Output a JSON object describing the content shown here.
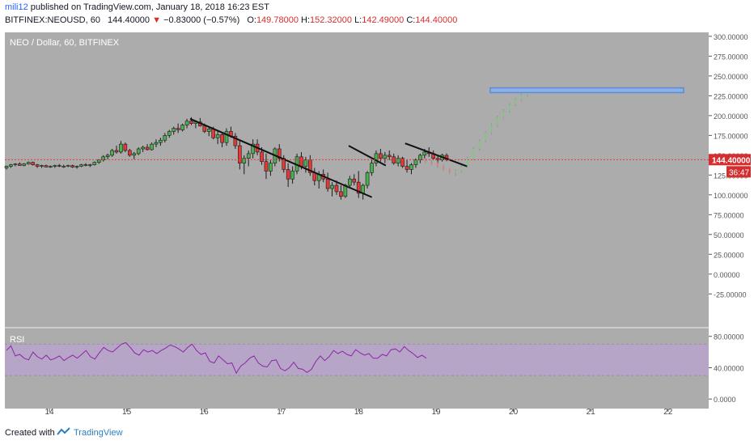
{
  "header": {
    "author": "mili12",
    "published": "published on TradingView.com, January 18, 2018 16:23 EST",
    "symbol": "BITFINEX:NEOUSD, 60",
    "last": "144.40000",
    "change": "−0.83000 (−0.57%)",
    "o_label": "O:",
    "o_value": "149.78000",
    "h_label": "H:",
    "h_value": "152.32000",
    "l_label": "L:",
    "l_value": "142.49000",
    "c_label": "C:",
    "c_value": "144.40000"
  },
  "footer": {
    "created": "Created with",
    "brand": "TradingView"
  },
  "chart_data": [
    {
      "type": "candlestick",
      "title": "NEO / Dollar, 60, BITFINEX",
      "y_ticks": [
        "300.00000",
        "275.00000",
        "250.00000",
        "225.00000",
        "200.00000",
        "175.00000",
        "150.00000",
        "125.00000",
        "100.00000",
        "75.00000",
        "50.00000",
        "25.00000",
        "0.00000",
        "-25.00000"
      ],
      "ylim": [
        -38,
        305
      ],
      "x_ticks": [
        "14",
        "15",
        "16",
        "17",
        "18",
        "19",
        "20",
        "21",
        "22"
      ],
      "last_price_label": "144.40000",
      "countdown_label": "36:47",
      "last_price": 144.4,
      "grid": false,
      "colors": {
        "up": "#4caf50",
        "down": "#e53935",
        "background": "#acacac",
        "price_line": "#e53935",
        "target_box": "#5b8cd6"
      },
      "candles": [
        [
          134,
          137,
          132,
          136
        ],
        [
          136,
          139,
          134,
          138
        ],
        [
          138,
          140,
          136,
          139
        ],
        [
          139,
          141,
          137,
          137
        ],
        [
          137,
          140,
          136,
          139
        ],
        [
          139,
          142,
          138,
          141
        ],
        [
          141,
          142,
          137,
          138
        ],
        [
          138,
          139,
          134,
          136
        ],
        [
          136,
          138,
          134,
          137
        ],
        [
          137,
          138,
          135,
          135
        ],
        [
          135,
          137,
          134,
          136
        ],
        [
          136,
          138,
          134,
          137
        ],
        [
          137,
          139,
          135,
          136
        ],
        [
          136,
          138,
          134,
          136
        ],
        [
          136,
          138,
          135,
          137
        ],
        [
          137,
          138,
          134,
          135
        ],
        [
          135,
          137,
          133,
          136
        ],
        [
          136,
          139,
          135,
          138
        ],
        [
          138,
          140,
          136,
          137
        ],
        [
          137,
          139,
          135,
          138
        ],
        [
          138,
          142,
          137,
          141
        ],
        [
          141,
          145,
          139,
          144
        ],
        [
          144,
          150,
          142,
          148
        ],
        [
          148,
          152,
          145,
          150
        ],
        [
          150,
          158,
          148,
          156
        ],
        [
          156,
          162,
          152,
          154
        ],
        [
          154,
          168,
          152,
          164
        ],
        [
          164,
          166,
          154,
          156
        ],
        [
          156,
          158,
          148,
          150
        ],
        [
          150,
          154,
          145,
          152
        ],
        [
          152,
          160,
          150,
          158
        ],
        [
          158,
          162,
          154,
          160
        ],
        [
          160,
          164,
          156,
          157
        ],
        [
          157,
          166,
          156,
          164
        ],
        [
          164,
          170,
          160,
          166
        ],
        [
          166,
          172,
          162,
          169
        ],
        [
          169,
          178,
          166,
          175
        ],
        [
          175,
          182,
          172,
          180
        ],
        [
          180,
          186,
          176,
          184
        ],
        [
          184,
          190,
          178,
          182
        ],
        [
          182,
          190,
          180,
          188
        ],
        [
          188,
          196,
          184,
          193
        ],
        [
          193,
          198,
          188,
          190
        ],
        [
          190,
          194,
          184,
          192
        ],
        [
          192,
          197,
          186,
          187
        ],
        [
          187,
          190,
          178,
          180
        ],
        [
          180,
          185,
          174,
          183
        ],
        [
          183,
          186,
          170,
          172
        ],
        [
          172,
          180,
          164,
          176
        ],
        [
          176,
          178,
          160,
          166
        ],
        [
          166,
          184,
          162,
          180
        ],
        [
          180,
          186,
          172,
          174
        ],
        [
          174,
          178,
          158,
          162
        ],
        [
          162,
          168,
          132,
          140
        ],
        [
          140,
          150,
          126,
          146
        ],
        [
          146,
          156,
          136,
          152
        ],
        [
          152,
          170,
          146,
          164
        ],
        [
          164,
          170,
          150,
          154
        ],
        [
          154,
          160,
          138,
          142
        ],
        [
          142,
          152,
          120,
          130
        ],
        [
          130,
          144,
          124,
          140
        ],
        [
          140,
          160,
          136,
          158
        ],
        [
          158,
          164,
          142,
          146
        ],
        [
          146,
          150,
          128,
          132
        ],
        [
          132,
          140,
          110,
          120
        ],
        [
          120,
          136,
          114,
          130
        ],
        [
          130,
          152,
          126,
          148
        ],
        [
          148,
          154,
          132,
          136
        ],
        [
          136,
          148,
          128,
          144
        ],
        [
          144,
          150,
          124,
          128
        ],
        [
          128,
          134,
          112,
          118
        ],
        [
          118,
          130,
          108,
          126
        ],
        [
          126,
          132,
          116,
          120
        ],
        [
          120,
          128,
          104,
          108
        ],
        [
          108,
          116,
          98,
          112
        ],
        [
          112,
          118,
          100,
          104
        ],
        [
          104,
          112,
          94,
          98
        ],
        [
          98,
          114,
          96,
          112
        ],
        [
          112,
          124,
          108,
          120
        ],
        [
          120,
          126,
          112,
          116
        ],
        [
          116,
          130,
          96,
          102
        ],
        [
          102,
          114,
          94,
          112
        ],
        [
          112,
          130,
          108,
          128
        ],
        [
          128,
          144,
          124,
          140
        ],
        [
          140,
          156,
          136,
          152
        ],
        [
          152,
          158,
          142,
          146
        ],
        [
          146,
          154,
          140,
          150
        ],
        [
          150,
          156,
          144,
          148
        ],
        [
          148,
          152,
          138,
          140
        ],
        [
          140,
          150,
          136,
          146
        ],
        [
          146,
          148,
          134,
          136
        ],
        [
          136,
          144,
          128,
          132
        ],
        [
          132,
          140,
          126,
          138
        ],
        [
          138,
          146,
          134,
          144
        ],
        [
          144,
          152,
          140,
          150
        ],
        [
          150,
          158,
          146,
          154
        ],
        [
          154,
          160,
          148,
          152
        ],
        [
          152,
          156,
          144,
          146
        ],
        [
          146,
          150,
          140,
          144
        ],
        [
          144,
          152,
          142,
          150
        ],
        [
          149.78,
          152.32,
          142.49,
          144.4
        ]
      ],
      "forecast": [
        [
          144,
          146,
          140,
          142
        ],
        [
          142,
          144,
          138,
          140
        ],
        [
          140,
          142,
          134,
          136
        ],
        [
          136,
          138,
          130,
          132
        ],
        [
          132,
          134,
          126,
          128
        ],
        [
          128,
          132,
          124,
          130
        ],
        [
          130,
          138,
          128,
          136
        ],
        [
          136,
          148,
          134,
          146
        ],
        [
          146,
          160,
          144,
          158
        ],
        [
          158,
          170,
          156,
          168
        ],
        [
          168,
          180,
          166,
          178
        ],
        [
          178,
          190,
          176,
          188
        ],
        [
          188,
          200,
          186,
          198
        ],
        [
          198,
          208,
          196,
          206
        ],
        [
          206,
          216,
          204,
          214
        ],
        [
          214,
          222,
          212,
          220
        ],
        [
          220,
          228,
          218,
          226
        ],
        [
          226,
          234,
          224,
          232
        ]
      ],
      "trendlines": [
        {
          "from": [
            15.82,
            196
          ],
          "to": [
            18.17,
            97
          ]
        },
        {
          "from": [
            17.87,
            162
          ],
          "to": [
            18.35,
            137
          ]
        },
        {
          "from": [
            18.6,
            165
          ],
          "to": [
            19.4,
            136
          ]
        }
      ],
      "target_zone": {
        "x_from": 19.7,
        "x_to": 22.2,
        "y_low": 229,
        "y_high": 235
      }
    },
    {
      "type": "line",
      "title": "RSI",
      "y_ticks": [
        "80.00000",
        "40.00000",
        "0.0000"
      ],
      "ylim": [
        -5,
        88
      ],
      "band": [
        30,
        70
      ],
      "colors": {
        "line": "#8e24aa",
        "band": "#b7a4c9"
      },
      "values": [
        62,
        68,
        55,
        57,
        52,
        50,
        60,
        54,
        51,
        56,
        50,
        52,
        55,
        49,
        53,
        56,
        52,
        57,
        62,
        54,
        51,
        59,
        66,
        62,
        60,
        65,
        70,
        72,
        66,
        59,
        56,
        63,
        60,
        62,
        58,
        62,
        65,
        69,
        67,
        64,
        60,
        66,
        70,
        62,
        57,
        59,
        48,
        46,
        55,
        50,
        45,
        46,
        33,
        42,
        46,
        52,
        55,
        46,
        42,
        41,
        49,
        50,
        39,
        36,
        40,
        47,
        39,
        38,
        34,
        38,
        48,
        55,
        49,
        54,
        62,
        58,
        61,
        57,
        55,
        63,
        59,
        56,
        58,
        52,
        52,
        57,
        55,
        63,
        64,
        60,
        67,
        62,
        58,
        53,
        56,
        52
      ]
    }
  ]
}
